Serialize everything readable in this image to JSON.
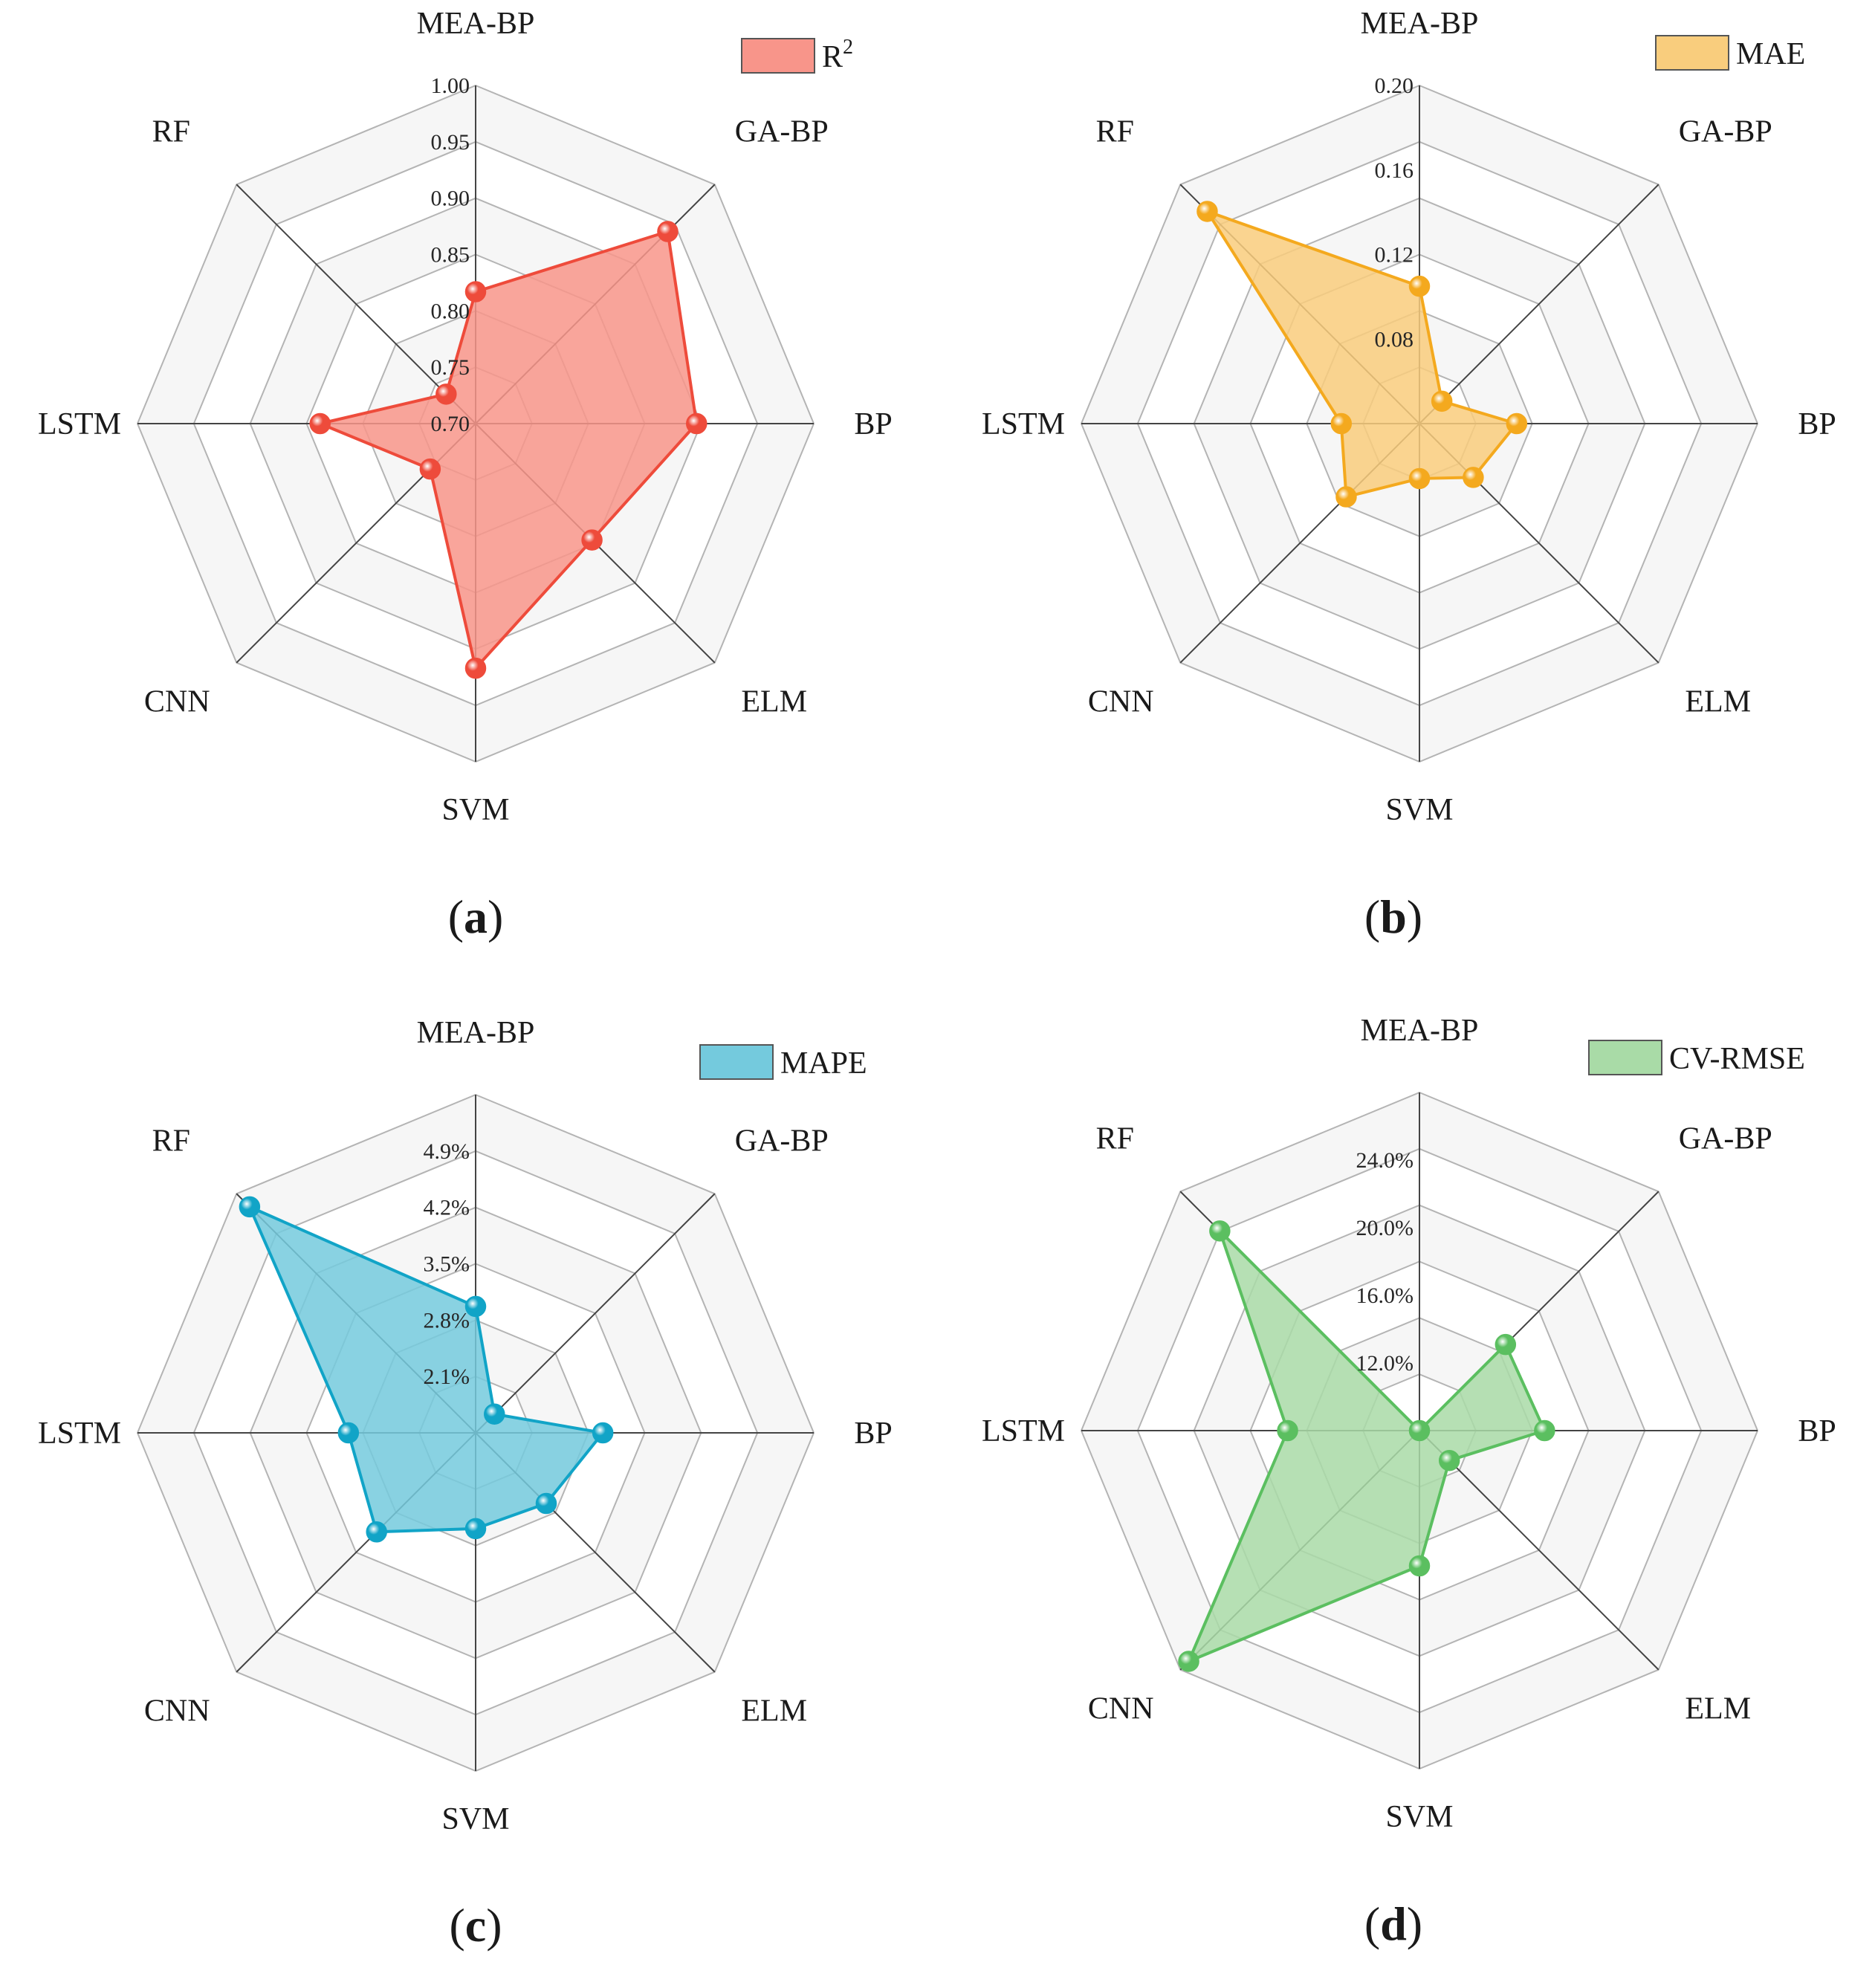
{
  "chart_data": [
    {
      "type": "radar",
      "panel_label": "(a)",
      "legend": "R",
      "legend_superscript": "2",
      "color": "#ee4b3b",
      "fill_color": "#f8958a",
      "axes": [
        "MEA-BP",
        "GA-BP",
        "BP",
        "ELM",
        "SVM",
        "CNN",
        "LSTM",
        "RF"
      ],
      "range": [
        0.7,
        1.0
      ],
      "ticks": [
        "0.70",
        "0.75",
        "0.80",
        "0.85",
        "0.90",
        "0.95",
        "1.00"
      ],
      "tick_values": [
        0.7,
        0.75,
        0.8,
        0.85,
        0.9,
        0.95,
        1.0
      ],
      "values": [
        0.817,
        0.941,
        0.896,
        0.846,
        0.917,
        0.757,
        0.838,
        0.737
      ]
    },
    {
      "type": "radar",
      "panel_label": "(b)",
      "legend": "MAE",
      "color": "#f4a91e",
      "fill_color": "#f9cd7d",
      "axes": [
        "MEA-BP",
        "GA-BP",
        "BP",
        "ELM",
        "SVM",
        "CNN",
        "LSTM",
        "RF"
      ],
      "range": [
        0.04,
        0.2
      ],
      "ticks": [
        "0.08",
        "0.12",
        "0.16",
        "0.20"
      ],
      "tick_values": [
        0.08,
        0.12,
        0.16,
        0.2
      ],
      "values": [
        0.105,
        0.055,
        0.086,
        0.076,
        0.066,
        0.089,
        0.077,
        0.182
      ]
    },
    {
      "type": "radar",
      "panel_label": "(c)",
      "legend": "MAPE",
      "color": "#11a4c7",
      "fill_color": "#74cadd",
      "axes": [
        "MEA-BP",
        "GA-BP",
        "BP",
        "ELM",
        "SVM",
        "CNN",
        "LSTM",
        "RF"
      ],
      "range": [
        1.4,
        5.6
      ],
      "ticks": [
        "2.1%",
        "2.8%",
        "3.5%",
        "4.2%",
        "4.9%"
      ],
      "tick_values": [
        2.1,
        2.8,
        3.5,
        4.2,
        4.9
      ],
      "values": [
        2.97,
        1.73,
        2.98,
        2.64,
        2.59,
        3.14,
        2.98,
        5.37
      ]
    },
    {
      "type": "radar",
      "panel_label": "(d)",
      "legend": "CV-RMSE",
      "color": "#5bbf60",
      "fill_color": "#a9dba7",
      "axes": [
        "MEA-BP",
        "GA-BP",
        "BP",
        "ELM",
        "SVM",
        "CNN",
        "LSTM",
        "RF"
      ],
      "range": [
        8.0,
        28.0
      ],
      "ticks": [
        "12.0%",
        "16.0%",
        "20.0%",
        "24.0%"
      ],
      "tick_values": [
        12.0,
        16.0,
        20.0,
        24.0
      ],
      "values": [
        8.0,
        15.2,
        15.4,
        10.5,
        16.0,
        27.3,
        15.8,
        24.7
      ]
    }
  ]
}
